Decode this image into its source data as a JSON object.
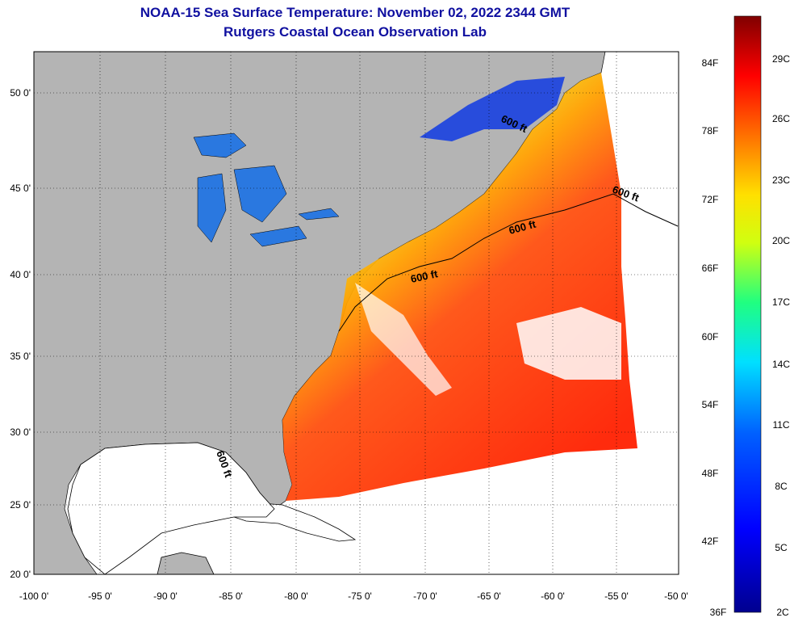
{
  "title": "NOAA-15 Sea Surface Temperature:  November 02, 2022 2344 GMT",
  "subtitle": "Rutgers Coastal Ocean Observation Lab",
  "axes": {
    "x_ticks": [
      "-100 0'",
      "-95 0'",
      "-90 0'",
      "-85 0'",
      "-80 0'",
      "-75 0'",
      "-70 0'",
      "-65 0'",
      "-60 0'",
      "-55 0'",
      "-50 0'"
    ],
    "y_ticks": [
      "50 0'",
      "45 0'",
      "40 0'",
      "35 0'",
      "30 0'",
      "25 0'",
      "20 0'"
    ]
  },
  "contour_label": "600 ft",
  "colorbar": {
    "fahrenheit": [
      "84F",
      "78F",
      "72F",
      "66F",
      "60F",
      "54F",
      "48F",
      "42F",
      "36F"
    ],
    "celsius": [
      "29C",
      "26C",
      "23C",
      "20C",
      "17C",
      "14C",
      "11C",
      "8C",
      "5C",
      "2C"
    ]
  },
  "colors": {
    "land": "#b4b4b4",
    "title": "#1010a0"
  }
}
